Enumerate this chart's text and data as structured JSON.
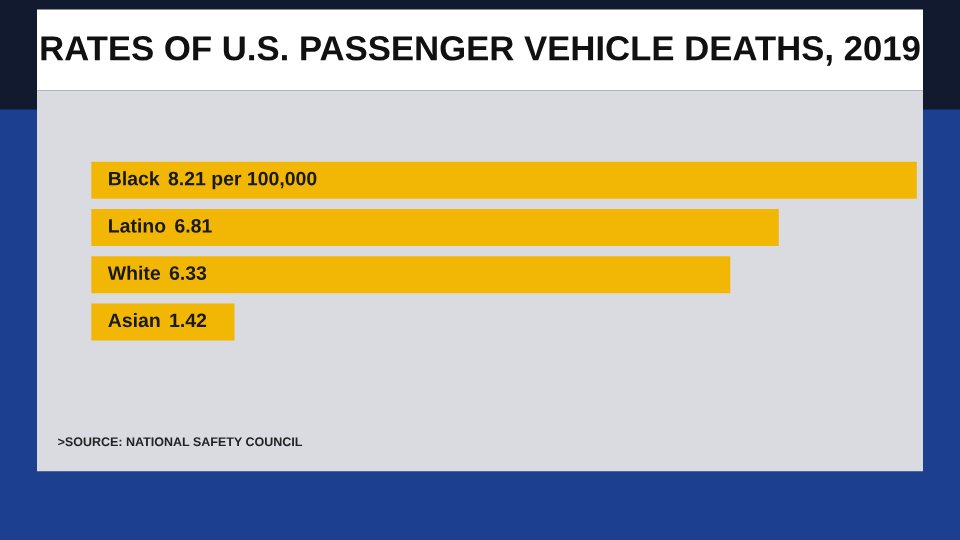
{
  "chart_data": {
    "type": "bar",
    "orientation": "horizontal",
    "title": "RATES OF U.S. PASSENGER VEHICLE DEATHS, 2019",
    "categories": [
      "Black",
      "Latino",
      "White",
      "Asian"
    ],
    "values": [
      8.21,
      6.81,
      6.33,
      1.42
    ],
    "value_labels": [
      "8.21 per 100,000",
      "6.81",
      "6.33",
      "1.42"
    ],
    "color": "#f2b705",
    "tick_labels": false,
    "annotations": [
      ">SOURCE: NATIONAL SAFETY COUNCIL"
    ]
  }
}
